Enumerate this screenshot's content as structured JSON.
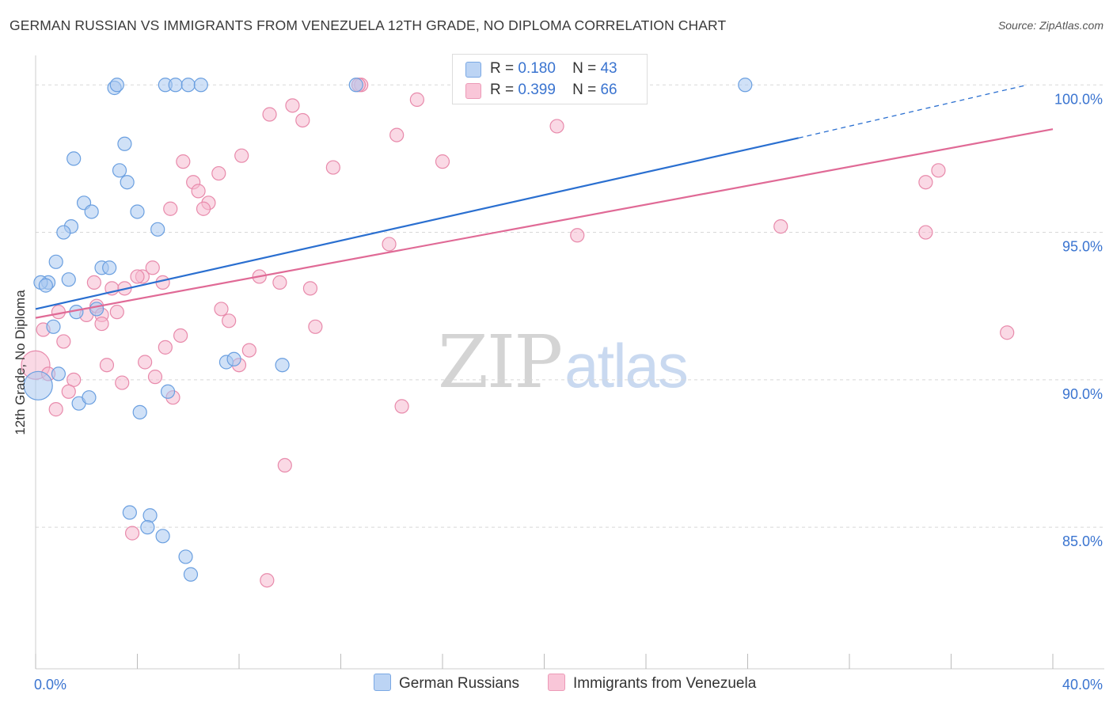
{
  "title": "GERMAN RUSSIAN VS IMMIGRANTS FROM VENEZUELA 12TH GRADE, NO DIPLOMA CORRELATION CHART",
  "source": "Source: ZipAtlas.com",
  "watermark": {
    "zip": "ZIP",
    "atlas": "atlas"
  },
  "legend": {
    "rows": [
      {
        "r_label": "R =",
        "r_value": "0.180",
        "n_label": "N =",
        "n_value": "43"
      },
      {
        "r_label": "R =",
        "r_value": "0.399",
        "n_label": "N =",
        "n_value": "66"
      }
    ]
  },
  "colors": {
    "blue_fill": "#a9c8f0",
    "blue_stroke": "#6a9fe0",
    "blue_line": "#2a6fd0",
    "pink_fill": "#f6b9cf",
    "pink_stroke": "#e88aab",
    "pink_line": "#e06a96",
    "tick_label": "#3a74d0",
    "grid": "#d8d8d8"
  },
  "chart_data": {
    "type": "scatter",
    "title": "GERMAN RUSSIAN VS IMMIGRANTS FROM VENEZUELA 12TH GRADE, NO DIPLOMA CORRELATION CHART",
    "xlabel": "",
    "ylabel": "12th Grade, No Diploma",
    "xlim": [
      0,
      40
    ],
    "ylim": [
      80.2,
      101.0
    ],
    "x_tick_labels": [
      {
        "value": 0,
        "label": "0.0%"
      },
      {
        "value": 40,
        "label": "40.0%"
      }
    ],
    "x_minor_ticks": [
      4,
      8,
      12,
      16,
      20,
      24,
      28,
      32,
      36
    ],
    "y_ticks": [
      {
        "value": 85,
        "label": "85.0%"
      },
      {
        "value": 90,
        "label": "90.0%"
      },
      {
        "value": 95,
        "label": "95.0%"
      },
      {
        "value": 100,
        "label": "100.0%"
      }
    ],
    "series": [
      {
        "name": "German Russians",
        "color": "#a9c8f0",
        "R": 0.18,
        "N": 43,
        "trend": {
          "x0": 0,
          "y0": 92.4,
          "x1": 30,
          "y1": 98.2,
          "dashed_to_x": 39,
          "dashed_to_y": 100.0
        },
        "points": [
          [
            3.1,
            99.9
          ],
          [
            3.2,
            100.0
          ],
          [
            5.1,
            100.0
          ],
          [
            5.5,
            100.0
          ],
          [
            6.0,
            100.0
          ],
          [
            6.5,
            100.0
          ],
          [
            12.6,
            100.0
          ],
          [
            27.9,
            100.0
          ],
          [
            3.5,
            98.0
          ],
          [
            1.5,
            97.5
          ],
          [
            3.3,
            97.1
          ],
          [
            3.6,
            96.7
          ],
          [
            1.9,
            96.0
          ],
          [
            2.2,
            95.7
          ],
          [
            4.0,
            95.7
          ],
          [
            1.4,
            95.2
          ],
          [
            1.1,
            95.0
          ],
          [
            4.8,
            95.1
          ],
          [
            0.8,
            94.0
          ],
          [
            2.6,
            93.8
          ],
          [
            2.9,
            93.8
          ],
          [
            1.3,
            93.4
          ],
          [
            0.5,
            93.3
          ],
          [
            0.2,
            93.3
          ],
          [
            0.4,
            93.2
          ],
          [
            1.6,
            92.3
          ],
          [
            2.4,
            92.4
          ],
          [
            0.7,
            91.8
          ],
          [
            7.5,
            90.6
          ],
          [
            7.8,
            90.7
          ],
          [
            9.7,
            90.5
          ],
          [
            0.9,
            90.2
          ],
          [
            0.1,
            89.8
          ],
          [
            5.2,
            89.6
          ],
          [
            1.7,
            89.2
          ],
          [
            2.1,
            89.4
          ],
          [
            4.1,
            88.9
          ],
          [
            3.7,
            85.5
          ],
          [
            4.5,
            85.4
          ],
          [
            4.4,
            85.0
          ],
          [
            5.0,
            84.7
          ],
          [
            5.9,
            84.0
          ],
          [
            6.1,
            83.4
          ]
        ]
      },
      {
        "name": "Immigrants from Venezuela",
        "color": "#f6b9cf",
        "R": 0.399,
        "N": 66,
        "trend": {
          "x0": 0,
          "y0": 92.1,
          "x1": 40,
          "y1": 98.5
        },
        "points": [
          [
            12.8,
            100.0
          ],
          [
            21.9,
            100.0
          ],
          [
            15.0,
            99.5
          ],
          [
            10.1,
            99.3
          ],
          [
            9.2,
            99.0
          ],
          [
            10.5,
            98.8
          ],
          [
            20.5,
            98.6
          ],
          [
            14.2,
            98.3
          ],
          [
            11.7,
            97.2
          ],
          [
            16.0,
            97.4
          ],
          [
            5.8,
            97.4
          ],
          [
            7.2,
            97.0
          ],
          [
            8.1,
            97.6
          ],
          [
            35.5,
            97.1
          ],
          [
            35.0,
            96.7
          ],
          [
            6.2,
            96.7
          ],
          [
            6.4,
            96.4
          ],
          [
            6.8,
            96.0
          ],
          [
            5.3,
            95.8
          ],
          [
            6.6,
            95.8
          ],
          [
            29.3,
            95.2
          ],
          [
            35.0,
            95.0
          ],
          [
            21.3,
            94.9
          ],
          [
            13.9,
            94.6
          ],
          [
            4.6,
            93.8
          ],
          [
            4.2,
            93.5
          ],
          [
            8.8,
            93.5
          ],
          [
            4.0,
            93.5
          ],
          [
            5.0,
            93.3
          ],
          [
            2.3,
            93.3
          ],
          [
            9.6,
            93.3
          ],
          [
            3.0,
            93.1
          ],
          [
            3.5,
            93.1
          ],
          [
            10.8,
            93.1
          ],
          [
            2.4,
            92.5
          ],
          [
            2.6,
            92.2
          ],
          [
            3.2,
            92.3
          ],
          [
            7.3,
            92.4
          ],
          [
            2.0,
            92.2
          ],
          [
            0.9,
            92.3
          ],
          [
            2.6,
            91.9
          ],
          [
            7.6,
            92.0
          ],
          [
            0.3,
            91.7
          ],
          [
            11.0,
            91.8
          ],
          [
            1.1,
            91.3
          ],
          [
            5.7,
            91.5
          ],
          [
            5.1,
            91.1
          ],
          [
            8.4,
            91.0
          ],
          [
            38.2,
            91.6
          ],
          [
            0.0,
            90.5
          ],
          [
            2.8,
            90.5
          ],
          [
            4.3,
            90.6
          ],
          [
            8.0,
            90.5
          ],
          [
            0.5,
            90.2
          ],
          [
            1.5,
            90.0
          ],
          [
            4.7,
            90.1
          ],
          [
            3.4,
            89.9
          ],
          [
            1.3,
            89.6
          ],
          [
            5.4,
            89.4
          ],
          [
            14.4,
            89.1
          ],
          [
            0.8,
            89.0
          ],
          [
            9.8,
            87.1
          ],
          [
            3.8,
            84.8
          ],
          [
            9.1,
            83.2
          ],
          [
            12.7,
            100.0
          ],
          [
            21.8,
            100.0
          ]
        ]
      }
    ]
  },
  "bottom_legend": [
    "German Russians",
    "Immigrants from Venezuela"
  ]
}
